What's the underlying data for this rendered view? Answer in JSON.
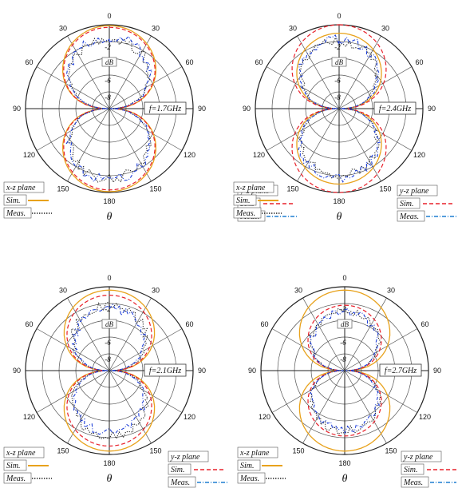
{
  "colors": {
    "xz_sim": "#e8a21c",
    "xz_meas": "#222222",
    "yz_sim": "#e8202a",
    "yz_meas": "#1e3fd8",
    "yz_meas_legend": "#1e7fd0",
    "grid": "#555555"
  },
  "legend": {
    "xz_title": "x-z plane",
    "yz_title": "y-z plane",
    "sim_label": "Sim.",
    "meas_label": "Meas."
  },
  "chart_data": [
    {
      "type": "polar-line",
      "title": "",
      "freq_label": "f=1.7GHz",
      "theta_label": "θ",
      "db_label": "dB",
      "angle_ticks": [
        "0",
        "30",
        "60",
        "90",
        "120",
        "150",
        "180",
        "150",
        "120",
        "90",
        "60",
        "30"
      ],
      "r_ticks": [
        "-2",
        "-4",
        "-6",
        "-8"
      ],
      "r_range_db": [
        -10,
        0
      ],
      "series": [
        {
          "name": "x-z plane Sim.",
          "style": "solid",
          "pattern": "cos",
          "width": 0.99
        },
        {
          "name": "x-z plane Meas.",
          "style": "dotted",
          "pattern": "cos",
          "width": 0.86
        },
        {
          "name": "y-z plane Sim.",
          "style": "dashed",
          "pattern": "cos",
          "width": 0.97
        },
        {
          "name": "y-z plane Meas.",
          "style": "dashdot",
          "pattern": "cos",
          "width": 0.88
        }
      ]
    },
    {
      "type": "polar-line",
      "title": "",
      "freq_label": "f=2.4GHz",
      "theta_label": "θ",
      "db_label": "dB",
      "angle_ticks": [
        "0",
        "30",
        "60",
        "90",
        "120",
        "150",
        "180",
        "150",
        "120",
        "90",
        "60",
        "30"
      ],
      "r_ticks": [
        "-2",
        "-4",
        "-6",
        "-8"
      ],
      "r_range_db": [
        -10,
        0
      ],
      "series": [
        {
          "name": "x-z plane Sim.",
          "style": "solid",
          "pattern": "cos",
          "width": 0.9
        },
        {
          "name": "x-z plane Meas.",
          "style": "dotted",
          "pattern": "cos",
          "width": 0.82
        },
        {
          "name": "y-z plane Sim.",
          "style": "dashed",
          "pattern": "cos",
          "width": 1.0
        },
        {
          "name": "y-z plane Meas.",
          "style": "dashdot",
          "pattern": "cos",
          "width": 0.85
        }
      ]
    },
    {
      "type": "polar-line",
      "title": "",
      "freq_label": "f=2.1GHz",
      "theta_label": "θ",
      "db_label": "dB",
      "angle_ticks": [
        "0",
        "30",
        "60",
        "90",
        "120",
        "150",
        "180",
        "150",
        "120",
        "90",
        "60",
        "30"
      ],
      "r_ticks": [
        "-2",
        "-4",
        "-6",
        "-8"
      ],
      "r_range_db": [
        -10,
        0
      ],
      "series": [
        {
          "name": "x-z plane Sim.",
          "style": "solid",
          "pattern": "cos",
          "width": 0.96
        },
        {
          "name": "x-z plane Meas.",
          "style": "dotted",
          "pattern": "cos",
          "width": 0.8
        },
        {
          "name": "y-z plane Sim.",
          "style": "dashed",
          "pattern": "cos",
          "width": 0.9
        },
        {
          "name": "y-z plane Meas.",
          "style": "dashdot",
          "pattern": "cos",
          "width": 0.76
        }
      ]
    },
    {
      "type": "polar-line",
      "title": "",
      "freq_label": "f=2.7GHz",
      "theta_label": "θ",
      "db_label": "dB",
      "angle_ticks": [
        "0",
        "30",
        "60",
        "90",
        "120",
        "150",
        "180",
        "150",
        "120",
        "90",
        "60",
        "30"
      ],
      "r_ticks": [
        "-2",
        "-4",
        "-6",
        "-8"
      ],
      "r_range_db": [
        -10,
        0
      ],
      "series": [
        {
          "name": "x-z plane Sim.",
          "style": "solid",
          "pattern": "cos",
          "width": 0.96
        },
        {
          "name": "x-z plane Meas.",
          "style": "dotted",
          "pattern": "cos",
          "width": 0.74
        },
        {
          "name": "y-z plane Sim.",
          "style": "dashed",
          "pattern": "cos",
          "width": 0.78
        },
        {
          "name": "y-z plane Meas.",
          "style": "dashdot",
          "pattern": "cos",
          "width": 0.72
        }
      ]
    }
  ]
}
